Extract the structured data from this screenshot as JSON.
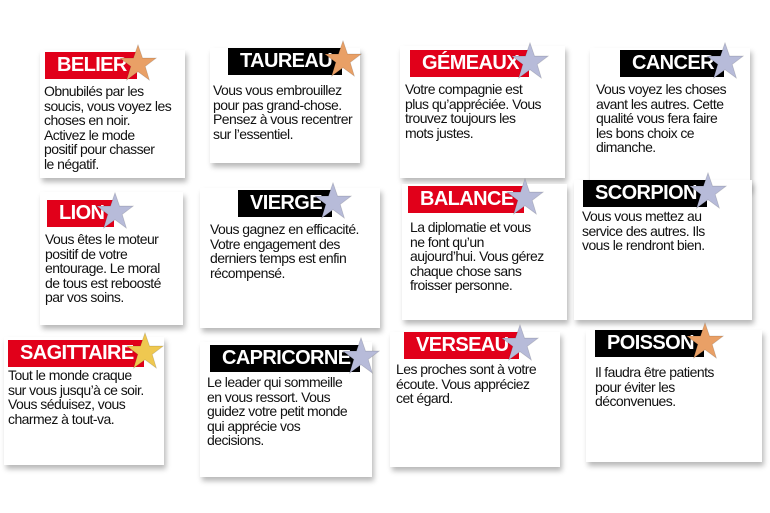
{
  "colors": {
    "red": "#e1001a",
    "black": "#000000",
    "bronze": "#e9a066",
    "silver": "#b7bbd9",
    "gold": "#efc850"
  },
  "signs": [
    {
      "name": "BELIER",
      "label_color": "red",
      "star": "bronze",
      "text": "Obnubilés par les\nsoucis, vous voyez les\nchoses en noir.\nActivez le mode\npositif pour chasser\nle négatif."
    },
    {
      "name": "TAUREAU",
      "label_color": "black",
      "star": "bronze",
      "text": "Vous vous embrouillez\npour pas grand-chose.\nPensez à vous recentrer\nsur l’essentiel."
    },
    {
      "name": "GÉMEAUX",
      "label_color": "red",
      "star": "silver",
      "text": "Votre compagnie est\nplus qu’appréciée. Vous\ntrouvez toujours les\nmots justes."
    },
    {
      "name": "CANCER",
      "label_color": "black",
      "star": "silver",
      "text": "Vous voyez les choses\navant les autres. Cette\nqualité vous fera faire\nles bons choix ce\ndimanche."
    },
    {
      "name": "LION",
      "label_color": "red",
      "star": "silver",
      "text": "Vous êtes le moteur\npositif de votre\nentourage. Le moral\nde tous est reboosté\npar vos soins."
    },
    {
      "name": "VIERGE",
      "label_color": "black",
      "star": "silver",
      "text": "Vous gagnez en efficacité.\nVotre engagement des\nderniers temps est enfin\nrécompensé."
    },
    {
      "name": "BALANCE",
      "label_color": "red",
      "star": "silver",
      "text": "La diplomatie et vous\nne font qu’un\naujourd’hui. Vous gérez\nchaque chose sans\nfroisser personne."
    },
    {
      "name": "SCORPION",
      "label_color": "black",
      "star": "silver",
      "text": "Vous vous mettez au\nservice des autres. Ils\nvous le rendront bien."
    },
    {
      "name": "SAGITTAIRE",
      "label_color": "red",
      "star": "gold",
      "text": "Tout le monde craque\nsur vous jusqu’à ce soir.\nVous séduisez, vous\ncharmez à tout-va."
    },
    {
      "name": "CAPRICORNE",
      "label_color": "black",
      "star": "silver",
      "text": "Le leader qui sommeille\nen vous ressort. Vous\nguidez votre petit monde\nqui apprécie vos\ndecisions."
    },
    {
      "name": "VERSEAU",
      "label_color": "red",
      "star": "silver",
      "text": "Les proches sont à votre\nécoute. Vous appréciez\ncet égard."
    },
    {
      "name": "POISSON",
      "label_color": "black",
      "star": "bronze",
      "text": "Il faudra être patients\npour éviter les\ndéconvenues."
    }
  ]
}
